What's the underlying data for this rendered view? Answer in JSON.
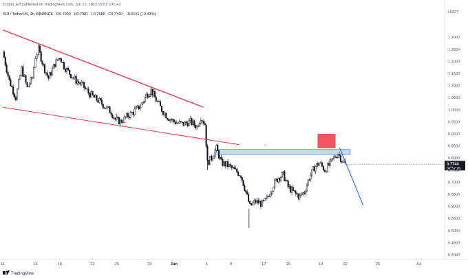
{
  "header": {
    "publisher": "Crypto_Ed published on TradingView.com, Jun 21, 2023 15:02 UTC+2",
    "symbol_line": "SUI / TetherUS, 4h, BINANCE",
    "o": "O0.7930",
    "h": "H0.7981",
    "l": "L0.7686",
    "c": "C0.7740",
    "chg": "−0.0191 (−2.41%)"
  },
  "logo_text": "TradingView",
  "price_badge": {
    "value": "0.7740",
    "countdown": "02:57:26",
    "color": "#131722"
  },
  "colors": {
    "candle": "#131722",
    "upper_trendline": "#f23645",
    "lower_trendline": "#f23645",
    "zone_fill": "#c5d7fb",
    "zone_stroke": "#2962ff",
    "target_box": "#f23645",
    "projection": "#2962ff",
    "marker": "#f23645"
  },
  "chart_data": {
    "type": "candlestick",
    "symbol": "SUI / TetherUS",
    "timeframe": "4h",
    "exchange": "BINANCE",
    "y_unit": "USDT",
    "ylim": [
      0.38,
      1.38
    ],
    "y_ticks": [
      "1.3000",
      "1.2500",
      "1.2000",
      "1.1500",
      "1.1000",
      "1.0500",
      "1.0000",
      "0.9500",
      "0.9000",
      "0.8500",
      "0.8000",
      "0.7500",
      "0.7000",
      "0.6500",
      "0.6000",
      "0.5500",
      "0.5000",
      "0.4500",
      "0.4000"
    ],
    "x_ticks": [
      "11",
      "15",
      "18",
      "22",
      "25",
      "29",
      "Jun",
      "5",
      "8",
      "12",
      "15",
      "19",
      "22",
      "26",
      "Jul"
    ],
    "x_ticks_bold": [
      "Jun"
    ],
    "x_tick_day_offsets": [
      0,
      4,
      7,
      11,
      14,
      18,
      21,
      25,
      28,
      32,
      35,
      39,
      42,
      46,
      51
    ],
    "x_start_day": 0,
    "x_end_day": 53,
    "last_close": 0.774,
    "price_series": [
      [
        0.0,
        1.24
      ],
      [
        0.8,
        1.12
      ],
      [
        1.6,
        1.05
      ],
      [
        2.3,
        1.17
      ],
      [
        3.0,
        1.09
      ],
      [
        3.6,
        1.13
      ],
      [
        4.0,
        1.22
      ],
      [
        4.4,
        1.25
      ],
      [
        5.0,
        1.18
      ],
      [
        5.6,
        1.13
      ],
      [
        6.4,
        1.19
      ],
      [
        7.0,
        1.22
      ],
      [
        7.5,
        1.18
      ],
      [
        8.2,
        1.15
      ],
      [
        9.0,
        1.12
      ],
      [
        9.8,
        1.1
      ],
      [
        10.5,
        1.07
      ],
      [
        11.2,
        1.05
      ],
      [
        12.0,
        1.03
      ],
      [
        12.6,
        1.01
      ],
      [
        13.3,
        0.99
      ],
      [
        13.8,
        0.96
      ],
      [
        14.4,
        0.95
      ],
      [
        15.2,
        0.97
      ],
      [
        16.0,
        0.99
      ],
      [
        17.0,
        1.02
      ],
      [
        17.6,
        1.06
      ],
      [
        18.2,
        1.08
      ],
      [
        18.8,
        1.04
      ],
      [
        19.5,
        1.0
      ],
      [
        20.2,
        0.97
      ],
      [
        21.0,
        0.95
      ],
      [
        22.0,
        0.94
      ],
      [
        23.0,
        0.95
      ],
      [
        23.8,
        0.93
      ],
      [
        24.3,
        0.97
      ],
      [
        24.8,
        0.94
      ],
      [
        25.1,
        0.78
      ],
      [
        25.6,
        0.8
      ],
      [
        26.2,
        0.84
      ],
      [
        26.8,
        0.78
      ],
      [
        27.6,
        0.77
      ],
      [
        28.4,
        0.75
      ],
      [
        29.2,
        0.73
      ],
      [
        29.8,
        0.66
      ],
      [
        30.3,
        0.6
      ],
      [
        31.0,
        0.62
      ],
      [
        31.8,
        0.61
      ],
      [
        32.4,
        0.63
      ],
      [
        33.2,
        0.69
      ],
      [
        33.8,
        0.72
      ],
      [
        34.4,
        0.73
      ],
      [
        35.0,
        0.68
      ],
      [
        35.6,
        0.66
      ],
      [
        36.4,
        0.64
      ],
      [
        37.0,
        0.66
      ],
      [
        37.6,
        0.72
      ],
      [
        38.2,
        0.76
      ],
      [
        38.8,
        0.78
      ],
      [
        39.5,
        0.75
      ],
      [
        40.0,
        0.77
      ],
      [
        40.6,
        0.8
      ],
      [
        41.1,
        0.82
      ],
      [
        41.6,
        0.79
      ],
      [
        42.0,
        0.774
      ]
    ],
    "candle_low_spikes": [
      [
        25.1,
        0.75
      ],
      [
        30.2,
        0.51
      ]
    ],
    "annotations": {
      "upper_trendline": {
        "from": [
          0.0,
          1.33
        ],
        "to": [
          24.6,
          1.01
        ]
      },
      "lower_trendline": {
        "from": [
          0.0,
          1.01
        ],
        "to": [
          29.0,
          0.855
        ]
      },
      "resistance_zone": {
        "x": [
          26.0,
          42.6
        ],
        "y": [
          0.815,
          0.835
        ]
      },
      "target_box": {
        "x": [
          38.6,
          40.8
        ],
        "y": [
          0.84,
          0.9
        ]
      },
      "zone_marker": {
        "x": 32.2,
        "y": 0.85
      },
      "projection": {
        "from": [
          41.3,
          0.842
        ],
        "to": [
          44.2,
          0.604
        ],
        "control": [
          42.8,
          0.72
        ]
      }
    }
  }
}
